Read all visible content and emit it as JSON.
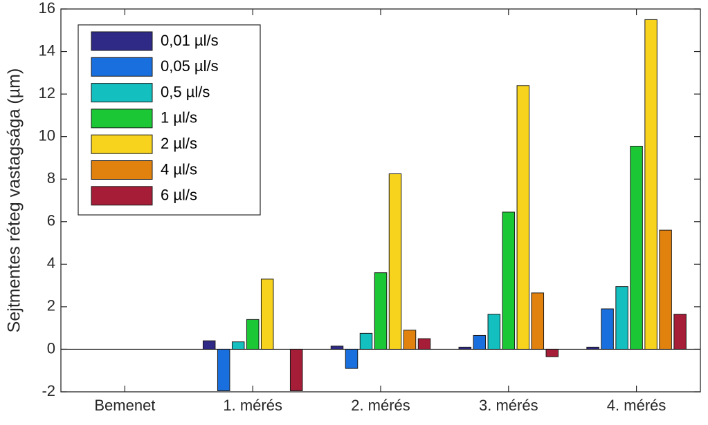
{
  "chart_data": {
    "type": "bar",
    "categories": [
      "Bemenet",
      "1. mérés",
      "2. mérés",
      "3. mérés",
      "4. mérés"
    ],
    "series": [
      {
        "name": "0,01 µl/s",
        "color": "#2E2A85",
        "values": [
          0,
          0.4,
          0.15,
          0.1,
          0.1
        ]
      },
      {
        "name": "0,05 µl/s",
        "color": "#1A6FDE",
        "values": [
          0,
          -1.95,
          -0.9,
          0.65,
          1.9
        ]
      },
      {
        "name": "0,5 µl/s",
        "color": "#14BFC0",
        "values": [
          0,
          0.35,
          0.75,
          1.65,
          2.95
        ]
      },
      {
        "name": "1 µl/s",
        "color": "#1CC736",
        "values": [
          0,
          1.4,
          3.6,
          6.45,
          9.55
        ]
      },
      {
        "name": "2 µl/s",
        "color": "#F7D31E",
        "values": [
          0,
          3.3,
          8.25,
          12.4,
          15.5
        ]
      },
      {
        "name": "4 µl/s",
        "color": "#E1820F",
        "values": [
          0,
          0,
          0.9,
          2.65,
          5.6
        ]
      },
      {
        "name": "6 µl/s",
        "color": "#A51D37",
        "values": [
          0,
          -1.95,
          0.5,
          -0.35,
          1.65
        ]
      }
    ],
    "title": "",
    "xlabel": "",
    "ylabel": "Sejtmentes réteg vastagsága (µm)",
    "ylim": [
      -2,
      16
    ],
    "yticks": [
      "-2",
      "0",
      "2",
      "4",
      "6",
      "8",
      "10",
      "12",
      "14",
      "16"
    ],
    "grid": false,
    "legend_position": "top-left"
  }
}
